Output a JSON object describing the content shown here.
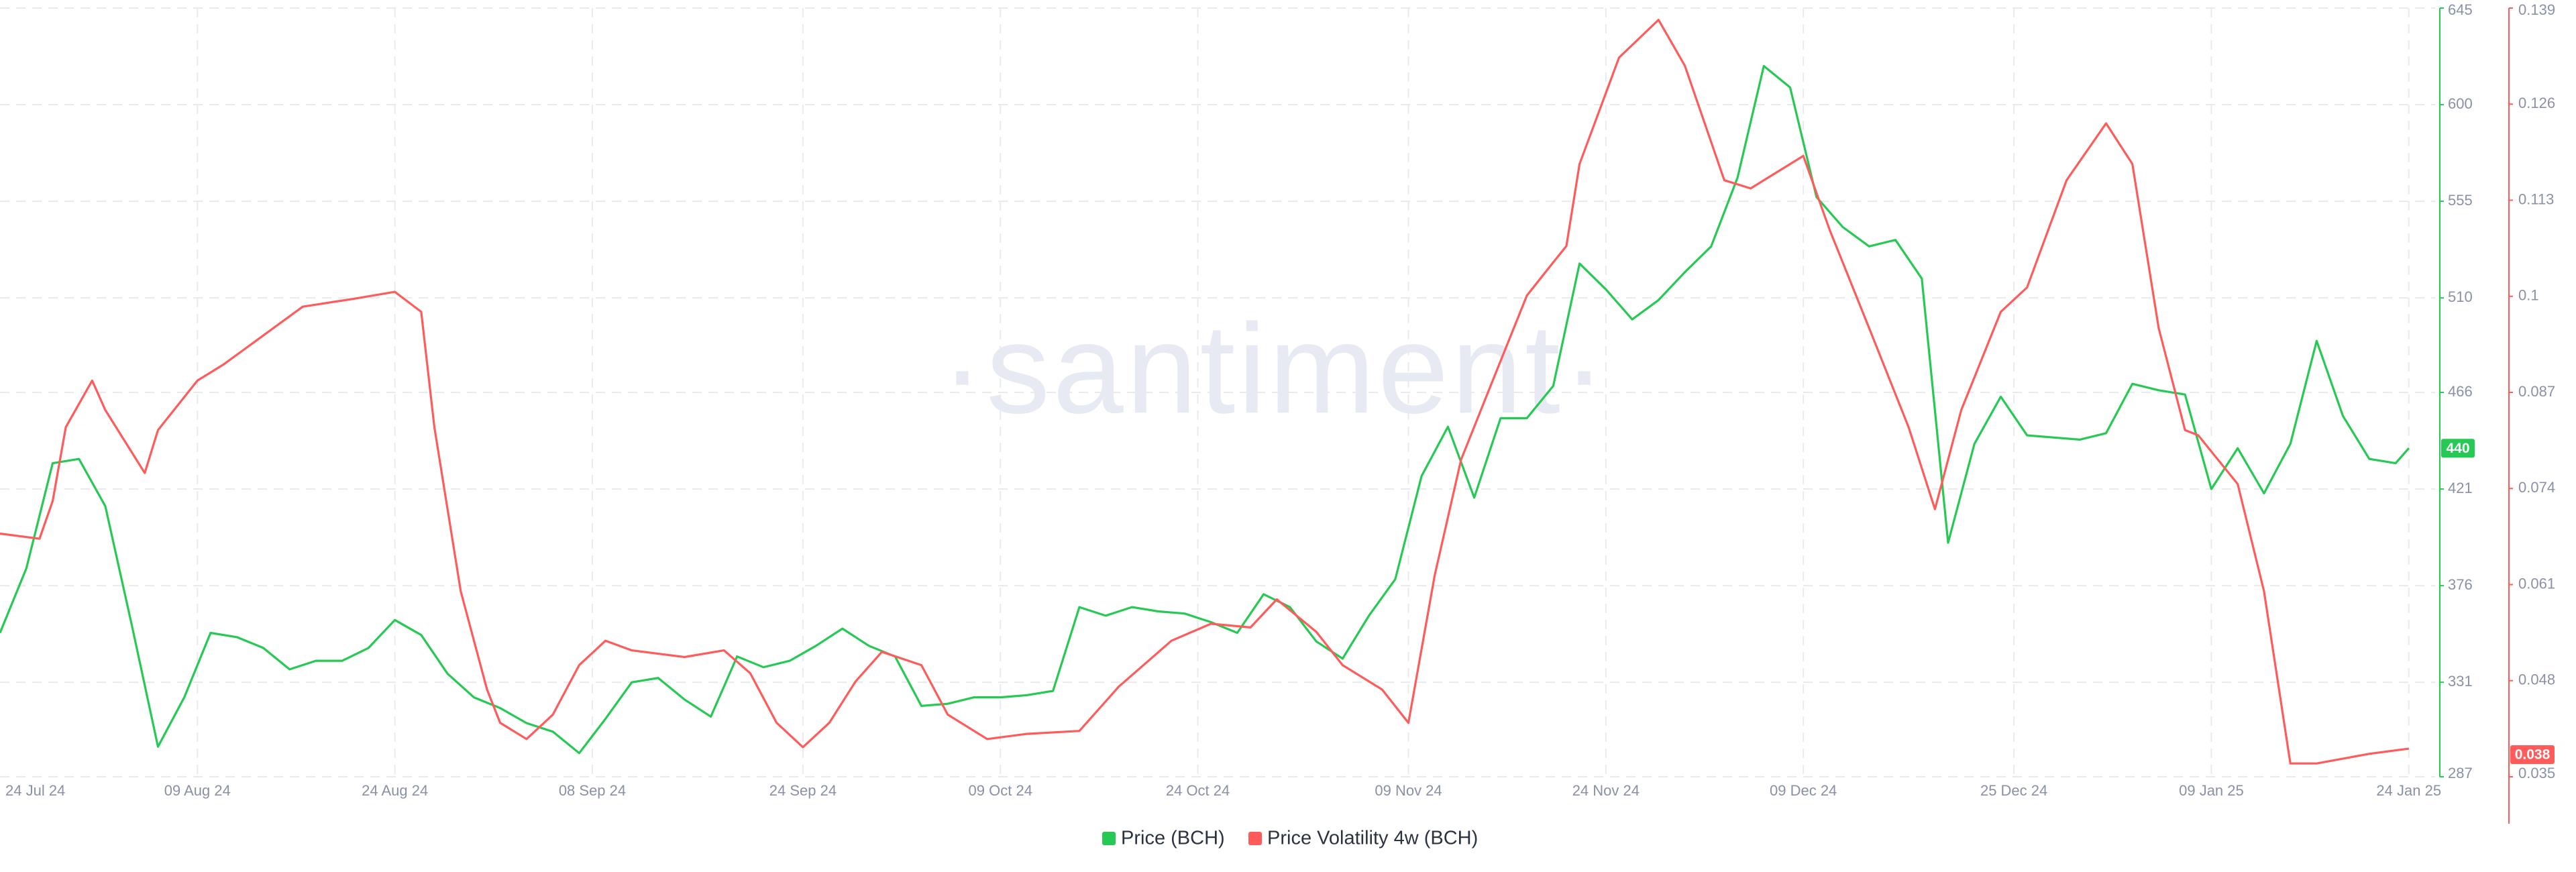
{
  "chart_data": {
    "type": "line",
    "watermark": "·santiment·",
    "xlim": [
      "2024-07-25",
      "2025-01-26"
    ],
    "xticks": [
      {
        "value": "2024-07-24",
        "label": "24 Jul 24"
      },
      {
        "value": "2024-08-09",
        "label": "09 Aug 24"
      },
      {
        "value": "2024-08-24",
        "label": "24 Aug 24"
      },
      {
        "value": "2024-09-08",
        "label": "08 Sep 24"
      },
      {
        "value": "2024-09-24",
        "label": "24 Sep 24"
      },
      {
        "value": "2024-10-09",
        "label": "09 Oct 24"
      },
      {
        "value": "2024-10-24",
        "label": "24 Oct 24"
      },
      {
        "value": "2024-11-09",
        "label": "09 Nov 24"
      },
      {
        "value": "2024-11-24",
        "label": "24 Nov 24"
      },
      {
        "value": "2024-12-09",
        "label": "09 Dec 24"
      },
      {
        "value": "2024-12-25",
        "label": "25 Dec 24"
      },
      {
        "value": "2025-01-09",
        "label": "09 Jan 25"
      },
      {
        "value": "2025-01-24",
        "label": "24 Jan 25"
      }
    ],
    "ylim": [
      287,
      645
    ],
    "yticks": [
      287,
      331,
      376,
      421,
      466,
      510,
      555,
      600,
      645
    ],
    "y2lim": [
      0.035,
      0.139
    ],
    "y2ticks": [
      0.035,
      0.048,
      0.061,
      0.074,
      0.087,
      0.1,
      0.113,
      0.126,
      0.139
    ],
    "grid": true,
    "legend": "bottom",
    "series": [
      {
        "name": "Price (BCH)",
        "color": "#26c953",
        "axis": "y",
        "current_value": 440,
        "x": [
          "2024-07-25",
          "2024-07-27",
          "2024-07-29",
          "2024-07-31",
          "2024-08-02",
          "2024-08-04",
          "2024-08-06",
          "2024-08-08",
          "2024-08-10",
          "2024-08-12",
          "2024-08-14",
          "2024-08-16",
          "2024-08-18",
          "2024-08-20",
          "2024-08-22",
          "2024-08-24",
          "2024-08-26",
          "2024-08-28",
          "2024-08-30",
          "2024-09-01",
          "2024-09-03",
          "2024-09-05",
          "2024-09-07",
          "2024-09-09",
          "2024-09-11",
          "2024-09-13",
          "2024-09-15",
          "2024-09-17",
          "2024-09-19",
          "2024-09-21",
          "2024-09-23",
          "2024-09-25",
          "2024-09-27",
          "2024-09-29",
          "2024-10-01",
          "2024-10-03",
          "2024-10-05",
          "2024-10-07",
          "2024-10-09",
          "2024-10-11",
          "2024-10-13",
          "2024-10-15",
          "2024-10-17",
          "2024-10-19",
          "2024-10-21",
          "2024-10-23",
          "2024-10-25",
          "2024-10-27",
          "2024-10-29",
          "2024-10-31",
          "2024-11-02",
          "2024-11-04",
          "2024-11-06",
          "2024-11-08",
          "2024-11-10",
          "2024-11-12",
          "2024-11-14",
          "2024-11-16",
          "2024-11-18",
          "2024-11-20",
          "2024-11-22",
          "2024-11-24",
          "2024-11-26",
          "2024-11-28",
          "2024-11-30",
          "2024-12-02",
          "2024-12-04",
          "2024-12-06",
          "2024-12-08",
          "2024-12-10",
          "2024-12-12",
          "2024-12-14",
          "2024-12-16",
          "2024-12-18",
          "2024-12-20",
          "2024-12-22",
          "2024-12-24",
          "2024-12-26",
          "2024-12-28",
          "2024-12-30",
          "2025-01-01",
          "2025-01-03",
          "2025-01-05",
          "2025-01-07",
          "2025-01-09",
          "2025-01-11",
          "2025-01-13",
          "2025-01-15",
          "2025-01-17",
          "2025-01-19",
          "2025-01-21",
          "2025-01-23",
          "2025-01-24"
        ],
        "values": [
          354,
          384,
          433,
          435,
          413,
          358,
          301,
          324,
          354,
          352,
          347,
          337,
          341,
          341,
          347,
          360,
          353,
          335,
          324,
          319,
          312,
          308,
          298,
          314,
          331,
          333,
          323,
          315,
          343,
          338,
          341,
          348,
          356,
          348,
          343,
          320,
          321,
          324,
          324,
          325,
          327,
          366,
          362,
          366,
          364,
          363,
          359,
          354,
          372,
          366,
          350,
          342,
          362,
          379,
          427,
          450,
          417,
          454,
          454,
          469,
          526,
          514,
          500,
          509,
          522,
          534,
          566,
          618,
          608,
          557,
          543,
          534,
          537,
          519,
          396,
          442,
          464,
          446,
          445,
          444,
          447,
          470,
          467,
          465,
          421,
          440,
          419,
          442,
          490,
          455,
          435,
          433,
          440
        ]
      },
      {
        "name": "Price Volatility 4w (BCH)",
        "color": "#ff5b5b",
        "axis": "y2",
        "current_value": 0.038,
        "x": [
          "2024-07-25",
          "2024-07-28",
          "2024-07-29",
          "2024-07-30",
          "2024-08-01",
          "2024-08-02",
          "2024-08-05",
          "2024-08-06",
          "2024-08-09",
          "2024-08-11",
          "2024-08-13",
          "2024-08-17",
          "2024-08-21",
          "2024-08-24",
          "2024-08-26",
          "2024-08-27",
          "2024-08-29",
          "2024-08-31",
          "2024-09-01",
          "2024-09-03",
          "2024-09-05",
          "2024-09-07",
          "2024-09-09",
          "2024-09-11",
          "2024-09-15",
          "2024-09-18",
          "2024-09-20",
          "2024-09-22",
          "2024-09-24",
          "2024-09-26",
          "2024-09-28",
          "2024-09-30",
          "2024-10-03",
          "2024-10-05",
          "2024-10-08",
          "2024-10-11",
          "2024-10-15",
          "2024-10-18",
          "2024-10-22",
          "2024-10-25",
          "2024-10-28",
          "2024-10-30",
          "2024-11-02",
          "2024-11-04",
          "2024-11-07",
          "2024-11-09",
          "2024-11-11",
          "2024-11-13",
          "2024-11-15",
          "2024-11-18",
          "2024-11-20",
          "2024-11-21",
          "2024-11-22",
          "2024-11-25",
          "2024-11-28",
          "2024-11-30",
          "2024-12-03",
          "2024-12-05",
          "2024-12-07",
          "2024-12-09",
          "2024-12-11",
          "2024-12-14",
          "2024-12-17",
          "2024-12-19",
          "2024-12-21",
          "2024-12-24",
          "2024-12-26",
          "2024-12-29",
          "2025-01-01",
          "2025-01-03",
          "2025-01-05",
          "2025-01-07",
          "2025-01-08",
          "2025-01-11",
          "2025-01-13",
          "2025-01-15",
          "2025-01-17",
          "2025-01-21",
          "2025-01-24"
        ],
        "values": [
          0.0679,
          0.0672,
          0.0723,
          0.0823,
          0.0886,
          0.0846,
          0.0761,
          0.0819,
          0.0886,
          0.0908,
          0.0934,
          0.0986,
          0.0997,
          0.1006,
          0.0979,
          0.0823,
          0.0601,
          0.0468,
          0.0423,
          0.0401,
          0.0434,
          0.0501,
          0.0534,
          0.0521,
          0.0512,
          0.0521,
          0.049,
          0.0423,
          0.039,
          0.0423,
          0.0479,
          0.0519,
          0.0501,
          0.0434,
          0.0401,
          0.0408,
          0.0412,
          0.0472,
          0.0534,
          0.0557,
          0.0552,
          0.059,
          0.0546,
          0.0501,
          0.0468,
          0.0423,
          0.0623,
          0.0779,
          0.0868,
          0.1001,
          0.1046,
          0.1068,
          0.1179,
          0.1323,
          0.1374,
          0.1312,
          0.1157,
          0.1146,
          0.1168,
          0.119,
          0.109,
          0.0957,
          0.0823,
          0.0712,
          0.0846,
          0.0979,
          0.1012,
          0.1157,
          0.1234,
          0.1179,
          0.0957,
          0.0819,
          0.0812,
          0.0746,
          0.0601,
          0.0368,
          0.0368,
          0.0381,
          0.0388
        ]
      }
    ]
  }
}
